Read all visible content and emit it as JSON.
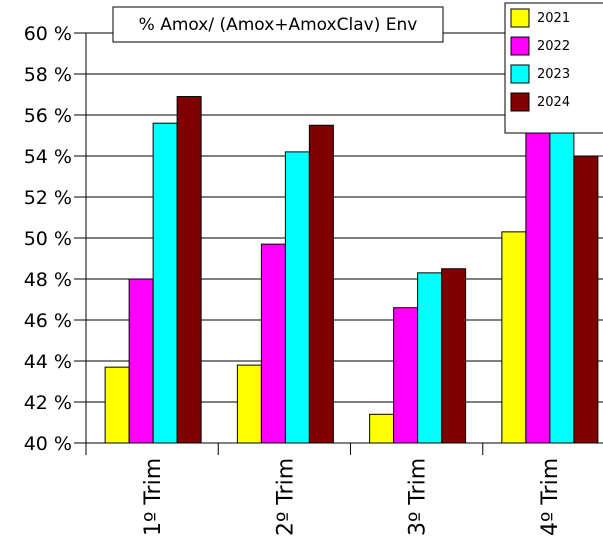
{
  "chart_data": {
    "type": "bar",
    "title": "% Amox/ (Amox+AmoxClav) Env",
    "categories": [
      "1º Trim",
      "2º Trim",
      "3º Trim",
      "4º Trim"
    ],
    "series": [
      {
        "name": "2021",
        "color": "#ffff00",
        "values": [
          43.7,
          43.8,
          41.4,
          50.3
        ]
      },
      {
        "name": "2022",
        "color": "#ff00ff",
        "values": [
          48.0,
          49.7,
          46.6,
          55.6
        ]
      },
      {
        "name": "2023",
        "color": "#00ffff",
        "values": [
          55.6,
          54.2,
          48.3,
          55.6
        ]
      },
      {
        "name": "2024",
        "color": "#800000",
        "values": [
          56.9,
          55.5,
          48.5,
          54.0
        ]
      }
    ],
    "ylim": [
      40,
      60
    ],
    "yticks": [
      40,
      42,
      44,
      46,
      48,
      50,
      52,
      54,
      56,
      58,
      60
    ],
    "ytick_suffix": " %",
    "grid": true,
    "legend_position": "top-right"
  }
}
